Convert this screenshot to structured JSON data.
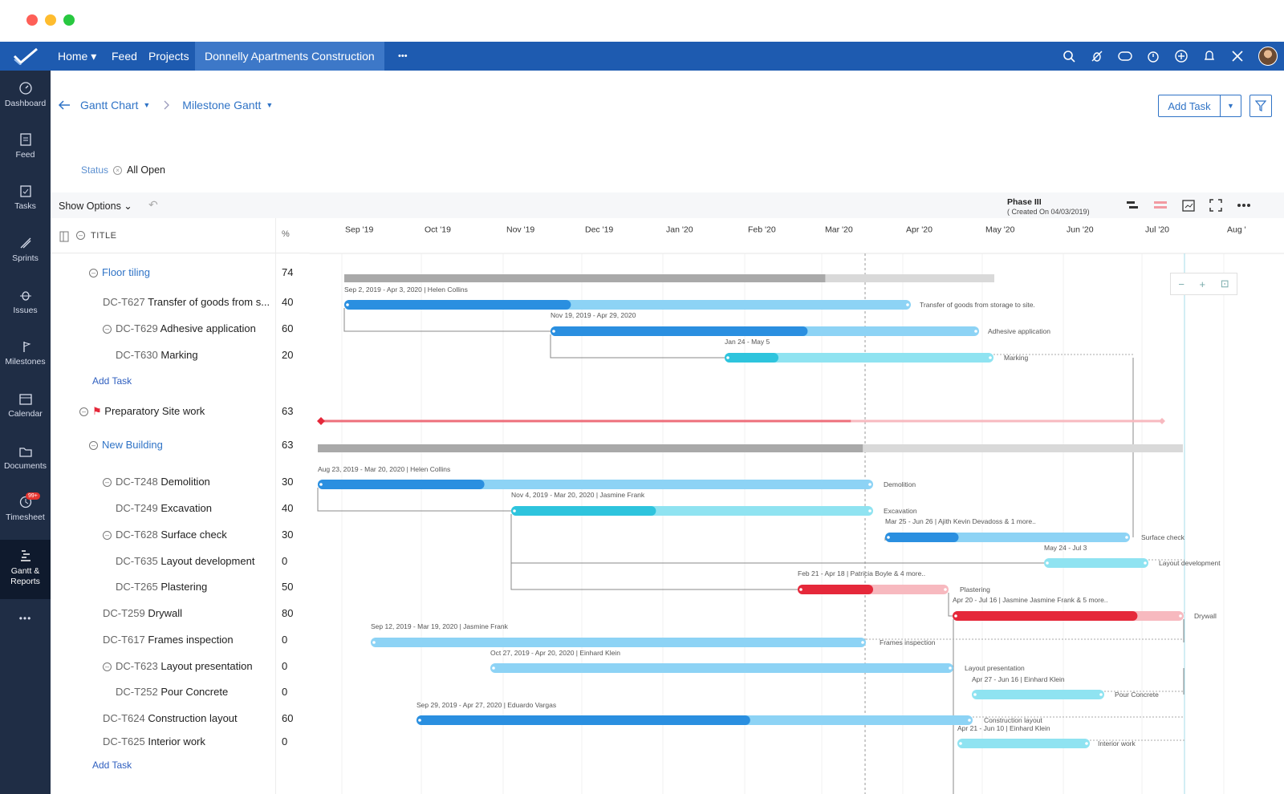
{
  "app": {
    "nav": {
      "home": "Home ▾",
      "feed": "Feed",
      "projects": "Projects",
      "project": "Donnelly Apartments Construction",
      "more": "•••"
    }
  },
  "sidebar": {
    "items": [
      {
        "label": "Dashboard",
        "icon": "dashboard-icon"
      },
      {
        "label": "Feed",
        "icon": "feed-icon"
      },
      {
        "label": "Tasks",
        "icon": "tasks-icon"
      },
      {
        "label": "Sprints",
        "icon": "sprints-icon"
      },
      {
        "label": "Issues",
        "icon": "issues-icon"
      },
      {
        "label": "Milestones",
        "icon": "milestones-icon"
      },
      {
        "label": "Calendar",
        "icon": "calendar-icon"
      },
      {
        "label": "Documents",
        "icon": "documents-icon"
      },
      {
        "label": "Timesheet",
        "icon": "timesheet-icon",
        "badge": "99+"
      },
      {
        "label": "Gantt & Reports",
        "icon": "gantt-icon"
      }
    ],
    "more": "•••"
  },
  "breadcrumb": {
    "view": "Gantt Chart",
    "subview": "Milestone Gantt"
  },
  "actions": {
    "add_task": "Add Task"
  },
  "filter": {
    "label": "Status",
    "value": "All Open"
  },
  "toolbar": {
    "show_options": "Show Options",
    "phase_title": "Phase III",
    "phase_sub": "( Created On 04/03/2019)"
  },
  "table": {
    "title_header": "TITLE",
    "pct_header": "%",
    "rows": [
      {
        "kind": "group",
        "name": "Floor tiling",
        "pct": "74"
      },
      {
        "kind": "task",
        "id": "DC-T627",
        "name": "Transfer of goods from s...",
        "pct": "40"
      },
      {
        "kind": "task",
        "id": "DC-T629",
        "name": "Adhesive application",
        "pct": "60"
      },
      {
        "kind": "task",
        "id": "DC-T630",
        "name": "Marking",
        "pct": "20"
      },
      {
        "kind": "add",
        "name": "Add Task"
      },
      {
        "kind": "milestone",
        "name": "Preparatory Site work",
        "pct": "63"
      },
      {
        "kind": "group",
        "name": "New Building",
        "pct": "63"
      },
      {
        "kind": "task",
        "id": "DC-T248",
        "name": "Demolition",
        "pct": "30"
      },
      {
        "kind": "task",
        "id": "DC-T249",
        "name": "Excavation",
        "pct": "40"
      },
      {
        "kind": "task",
        "id": "DC-T628",
        "name": "Surface check",
        "pct": "30"
      },
      {
        "kind": "task",
        "id": "DC-T635",
        "name": "Layout development",
        "pct": "0"
      },
      {
        "kind": "task",
        "id": "DC-T265",
        "name": "Plastering",
        "pct": "50"
      },
      {
        "kind": "task",
        "id": "DC-T259",
        "name": "Drywall",
        "pct": "80"
      },
      {
        "kind": "task",
        "id": "DC-T617",
        "name": "Frames inspection",
        "pct": "0"
      },
      {
        "kind": "task",
        "id": "DC-T623",
        "name": "Layout presentation",
        "pct": "0"
      },
      {
        "kind": "task",
        "id": "DC-T252",
        "name": "Pour Concrete",
        "pct": "0"
      },
      {
        "kind": "task",
        "id": "DC-T624",
        "name": "Construction layout",
        "pct": "60"
      },
      {
        "kind": "task",
        "id": "DC-T625",
        "name": "Interior work",
        "pct": "0"
      },
      {
        "kind": "add",
        "name": "Add Task"
      }
    ]
  },
  "timeline": {
    "months": [
      "Sep '19",
      "Oct '19",
      "Nov '19",
      "Dec '19",
      "Jan '20",
      "Feb '20",
      "Mar '20",
      "Apr '20",
      "May '20",
      "Jun '20",
      "Jul '20",
      "Aug '"
    ],
    "bars": [
      {
        "name": "Floor tiling",
        "type": "summary",
        "progress": 0.74
      },
      {
        "name": "Transfer of goods from storage to site.",
        "info": "Sep 2, 2019 - Apr 3, 2020 | Helen Collins",
        "progress": 0.4,
        "color": "blue"
      },
      {
        "name": "Adhesive application",
        "info": "Nov 19, 2019 - Apr 29, 2020",
        "progress": 0.6,
        "color": "blue"
      },
      {
        "name": "Marking",
        "info": "Jan 24 - May 5",
        "progress": 0.2,
        "color": "teal"
      },
      {
        "name": "Preparatory Site work",
        "type": "milestone",
        "progress": 0.63
      },
      {
        "name": "New Building",
        "type": "summary",
        "progress": 0.63
      },
      {
        "name": "Demolition",
        "info": "Aug 23, 2019 - Mar 20, 2020 | Helen Collins",
        "progress": 0.3,
        "color": "blue"
      },
      {
        "name": "Excavation",
        "info": "Nov 4, 2019 - Mar 20, 2020 | Jasmine Frank",
        "progress": 0.4,
        "color": "teal"
      },
      {
        "name": "Surface check",
        "info": "Mar 25 - Jun 26 | Ajith Kevin Devadoss & 1 more..",
        "progress": 0.3,
        "color": "blue"
      },
      {
        "name": "Layout development",
        "info": "May 24 - Jul 3",
        "progress": 0,
        "color": "teal"
      },
      {
        "name": "Plastering",
        "info": "Feb 21 - Apr 18 | Patricia Boyle & 4 more..",
        "progress": 0.5,
        "color": "red"
      },
      {
        "name": "Drywall",
        "info": "Apr 20 - Jul 16 | Jasmine Jasmine Frank & 5 more..",
        "progress": 0.8,
        "color": "red"
      },
      {
        "name": "Frames inspection",
        "info": "Sep 12, 2019 - Mar 19, 2020 | Jasmine Frank",
        "progress": 0,
        "color": "blue"
      },
      {
        "name": "Layout presentation",
        "info": "Oct 27, 2019 - Apr 20, 2020 | Einhard Klein",
        "progress": 0,
        "color": "blue"
      },
      {
        "name": "Pour Concrete",
        "info": "Apr 27 - Jun 16 | Einhard Klein",
        "progress": 0,
        "color": "teal"
      },
      {
        "name": "Construction layout",
        "info": "Sep 29, 2019 - Apr 27, 2020 | Eduardo Vargas",
        "progress": 0.6,
        "color": "blue"
      },
      {
        "name": "Interior work",
        "info": "Apr 21 - Jun 10 | Einhard Klein",
        "progress": 0,
        "color": "teal"
      }
    ]
  },
  "colors": {
    "nav": "#1e5bb0",
    "sidebar": "#1f2d45",
    "blue_dark": "#2a8fe0",
    "blue_light": "#8dd3f5",
    "teal_dark": "#2ec4dd",
    "teal_light": "#8fe3f1",
    "red_dark": "#e5283a",
    "red_light": "#f7b9bf",
    "summary_dark": "#a9a9a9",
    "summary_light": "#d9d9d9"
  }
}
